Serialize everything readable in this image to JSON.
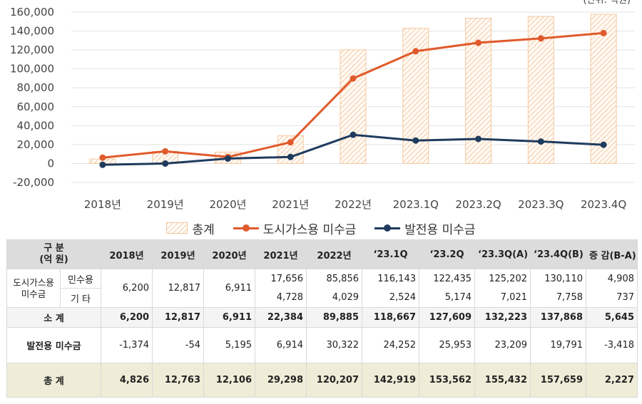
{
  "chart_data": {
    "type": "bar+line",
    "categories": [
      "2018년",
      "2019년",
      "2020년",
      "2021년",
      "2022년",
      "2023.1Q",
      "2023.2Q",
      "2023.3Q",
      "2023.4Q"
    ],
    "ylim": [
      -20000,
      160000
    ],
    "y_ticks": [
      "-20,000",
      "0",
      "20,000",
      "40,000",
      "60,000",
      "80,000",
      "100,000",
      "120,000",
      "140,000",
      "160,000"
    ],
    "unit_label": "(단위: 억원)",
    "series": [
      {
        "name": "총계",
        "type": "bar",
        "color": "#f0b888",
        "values": [
          4826,
          12763,
          12106,
          29298,
          120207,
          142919,
          153562,
          155432,
          157659
        ]
      },
      {
        "name": "도시가스용 미수금",
        "type": "line",
        "color": "#e05a2b",
        "values": [
          6200,
          12817,
          6911,
          22384,
          89885,
          118667,
          127609,
          132223,
          137868
        ]
      },
      {
        "name": "발전용 미수금",
        "type": "line",
        "color": "#1f3b5e",
        "values": [
          -1374,
          -54,
          5195,
          6914,
          30322,
          24252,
          25953,
          23209,
          19791
        ]
      }
    ],
    "grid": true,
    "legend_position": "bottom"
  },
  "table": {
    "corner_label": "구 분\n(억 원)",
    "columns": [
      "2018년",
      "2019년",
      "2020년",
      "2021년",
      "2022년",
      "‘23.1Q",
      "‘23.2Q",
      "‘23.3Q(A)",
      "‘23.4Q(B)",
      "증 감(B-A)"
    ],
    "city_gas_label": "도시가스용\n미수금",
    "residential_label": "민수용",
    "other_label": "기  타",
    "pre2021": [
      "6,200",
      "12,817",
      "6,911"
    ],
    "residential": [
      "17,656",
      "85,856",
      "116,143",
      "122,435",
      "125,202",
      "130,110",
      "4,908"
    ],
    "other": [
      "4,728",
      "4,029",
      "2,524",
      "5,174",
      "7,021",
      "7,758",
      "737"
    ],
    "subtotal_label": "소  계",
    "subtotal": [
      "6,200",
      "12,817",
      "6,911",
      "22,384",
      "89,885",
      "118,667",
      "127,609",
      "132,223",
      "137,868",
      "5,645"
    ],
    "power_label": "발전용 미수금",
    "power": [
      "-1,374",
      "-54",
      "5,195",
      "6,914",
      "30,322",
      "24,252",
      "25,953",
      "23,209",
      "19,791",
      "-3,418"
    ],
    "total_label": "총  계",
    "total": [
      "4,826",
      "12,763",
      "12,106",
      "29,298",
      "120,207",
      "142,919",
      "153,562",
      "155,432",
      "157,659",
      "2,227"
    ]
  }
}
